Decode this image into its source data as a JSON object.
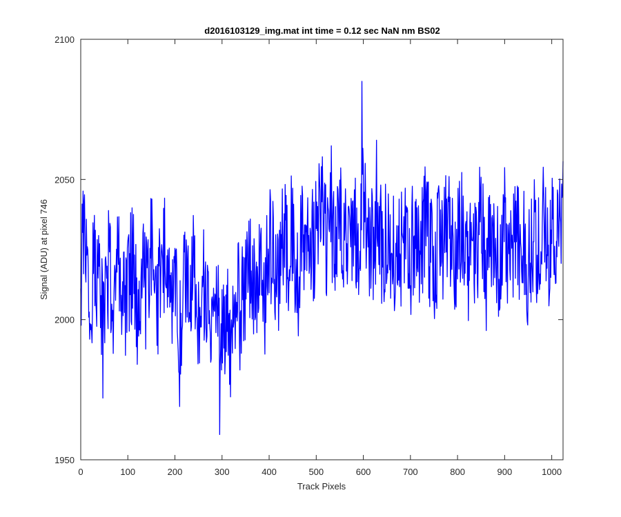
{
  "chart_data": {
    "type": "line",
    "title": "d2016103129_img.mat int time = 0.12 sec  NaN nm BS02",
    "xlabel": "Track Pixels",
    "ylabel": "Signal (ADU) at pixel 746",
    "xlim": [
      0,
      1024
    ],
    "ylim": [
      1950,
      2100
    ],
    "xticks": [
      0,
      100,
      200,
      300,
      400,
      500,
      600,
      700,
      800,
      900,
      1000
    ],
    "yticks": [
      1950,
      2000,
      2050,
      2100
    ],
    "grid": false,
    "legend": "none",
    "colors": {
      "series": "#0000ff",
      "axes": "#262626"
    },
    "series": [
      {
        "x": [
          0,
          10,
          20,
          30,
          40,
          50,
          60,
          70,
          80,
          90,
          100,
          110,
          120,
          130,
          140,
          150,
          160,
          170,
          180,
          190,
          200,
          210,
          220,
          230,
          240,
          250,
          260,
          270,
          280,
          290,
          300,
          310,
          320,
          330,
          340,
          350,
          360,
          370,
          380,
          390,
          400,
          410,
          420,
          430,
          440,
          450,
          460,
          470,
          480,
          490,
          500,
          510,
          520,
          530,
          540,
          550,
          560,
          570,
          580,
          590,
          600,
          610,
          620,
          630,
          640,
          650,
          660,
          670,
          680,
          690,
          700,
          710,
          720,
          730,
          740,
          750,
          760,
          770,
          780,
          790,
          800,
          810,
          820,
          830,
          840,
          850,
          860,
          870,
          880,
          890,
          900,
          910,
          920,
          930,
          940,
          950,
          960,
          970,
          980,
          990,
          1000,
          1010,
          1020
        ],
        "y": [
          2018,
          2032,
          2000,
          2025,
          2011,
          1997,
          2020,
          2007,
          2026,
          2003,
          2012,
          2021,
          1999,
          2015,
          2008,
          2024,
          2005,
          2013,
          2029,
          2002,
          2010,
          1994,
          2022,
          2006,
          2017,
          1992,
          2011,
          2003,
          1999,
          2013,
          1998,
          2004,
          1991,
          2010,
          2002,
          2016,
          2022,
          2007,
          2018,
          2004,
          2028,
          2019,
          2013,
          2030,
          2021,
          2033,
          2010,
          2029,
          2036,
          2025,
          2031,
          2041,
          2027,
          2037,
          2024,
          2039,
          2030,
          2018,
          2036,
          2028,
          2047,
          2032,
          2025,
          2040,
          2022,
          2034,
          2017,
          2030,
          2026,
          2038,
          2021,
          2033,
          2019,
          2036,
          2027,
          2016,
          2031,
          2024,
          2037,
          2020,
          2029,
          2034,
          2018,
          2030,
          2024,
          2038,
          2016,
          2032,
          2027,
          2021,
          2035,
          2019,
          2031,
          2025,
          2033,
          2017,
          2030,
          2026,
          2037,
          2023,
          2031,
          2027,
          2035
        ]
      }
    ],
    "spikes": [
      {
        "x": 47,
        "y": 1972
      },
      {
        "x": 210,
        "y": 1969
      },
      {
        "x": 295,
        "y": 1959
      },
      {
        "x": 597,
        "y": 2085
      },
      {
        "x": 628,
        "y": 2064
      },
      {
        "x": 532,
        "y": 2062
      }
    ]
  }
}
